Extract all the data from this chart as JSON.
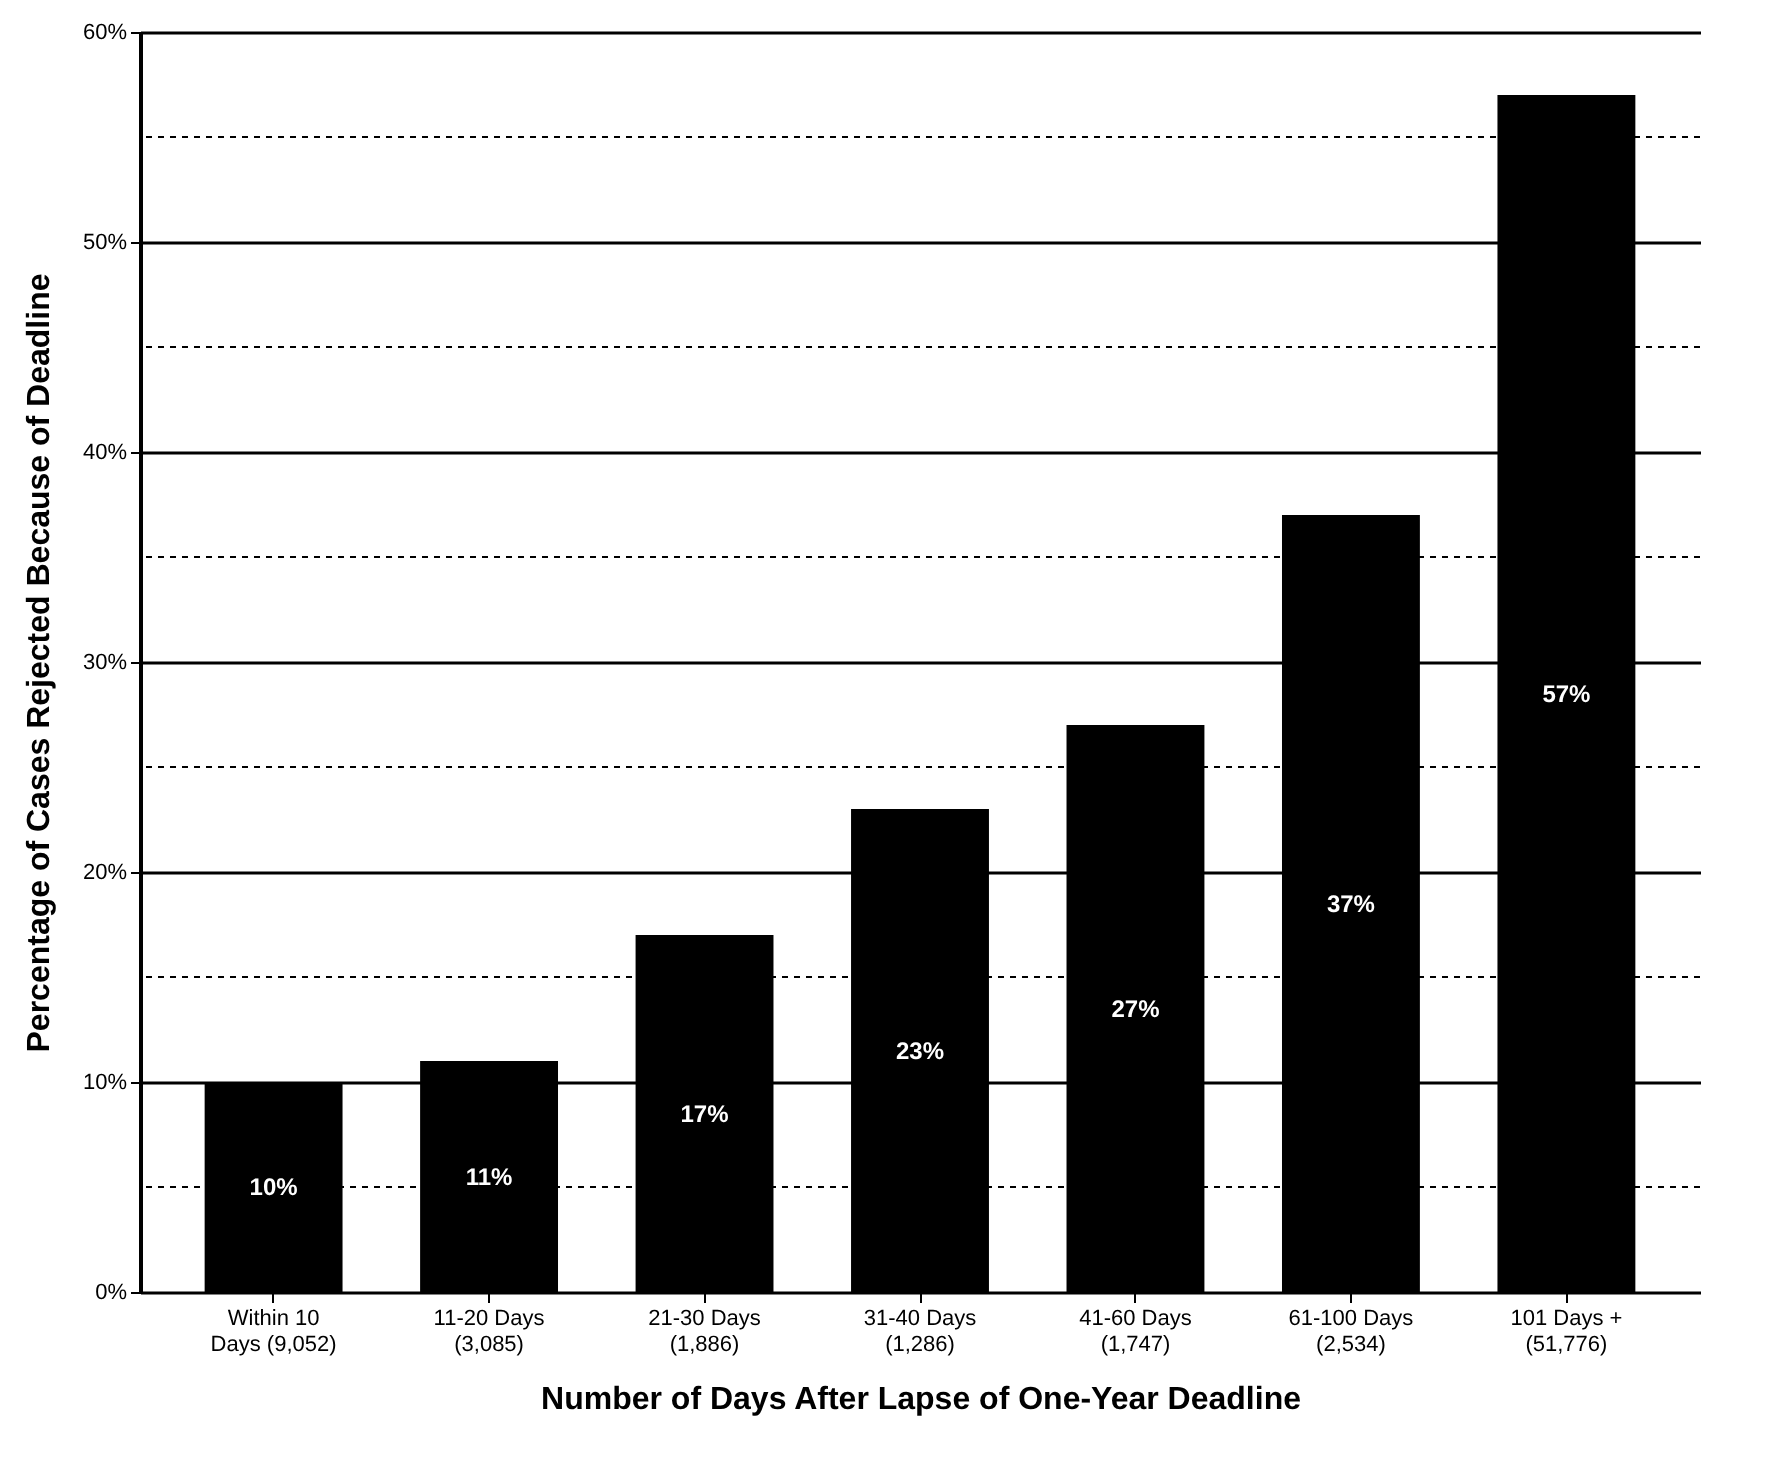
{
  "chart_data": {
    "type": "bar",
    "xlabel": "Number of Days After Lapse of One-Year Deadline",
    "ylabel": "Percentage of Cases Rejected Because of Deadline",
    "categories": [
      "Within 10\nDays (9,052)",
      "11-20 Days\n(3,085)",
      "21-30 Days\n(1,886)",
      "31-40 Days\n(1,286)",
      "41-60 Days\n(1,747)",
      "61-100 Days\n(2,534)",
      "101 Days +\n(51,776)"
    ],
    "series": [
      {
        "color": "#000000",
        "values": [
          10,
          11,
          17,
          23,
          27,
          37,
          57
        ],
        "value_labels": [
          "10%",
          "11%",
          "17%",
          "23%",
          "27%",
          "37%",
          "57%"
        ]
      }
    ],
    "ylim": [
      0,
      60
    ],
    "yticks": [
      {
        "value": 0,
        "label": "0%"
      },
      {
        "value": 5,
        "label": null
      },
      {
        "value": 10,
        "label": "10%"
      },
      {
        "value": 15,
        "label": null
      },
      {
        "value": 20,
        "label": "20%"
      },
      {
        "value": 25,
        "label": null
      },
      {
        "value": 30,
        "label": "30%"
      },
      {
        "value": 35,
        "label": null
      },
      {
        "value": 40,
        "label": "40%"
      },
      {
        "value": 45,
        "label": null
      },
      {
        "value": 50,
        "label": "50%"
      },
      {
        "value": 55,
        "label": null
      },
      {
        "value": 60,
        "label": "60%"
      }
    ],
    "grid": "y"
  }
}
